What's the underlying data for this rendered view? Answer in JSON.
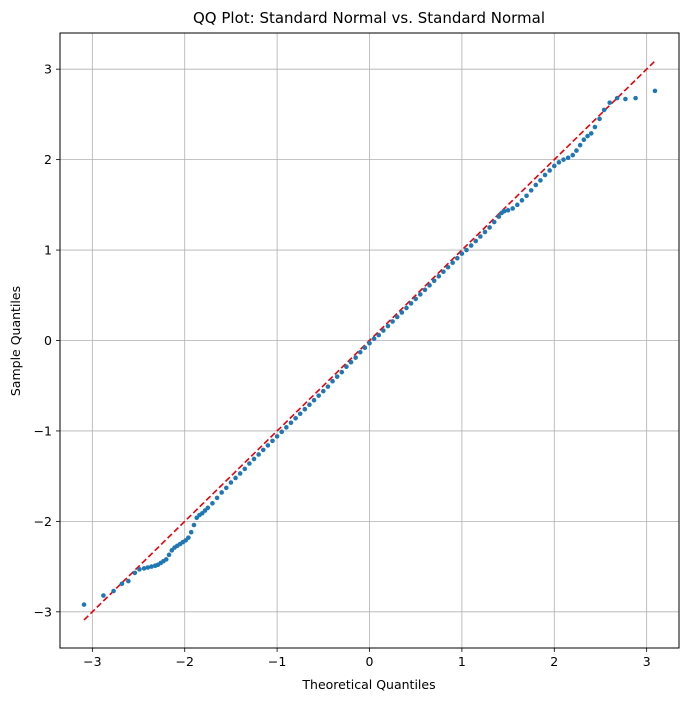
{
  "chart_data": {
    "type": "scatter",
    "title": "QQ Plot: Standard Normal vs. Standard Normal",
    "xlabel": "Theoretical Quantiles",
    "ylabel": "Sample Quantiles",
    "xlim": [
      -3.35,
      3.35
    ],
    "ylim": [
      -3.4,
      3.4
    ],
    "xticks": [
      -3,
      -2,
      -1,
      0,
      1,
      2,
      3
    ],
    "yticks": [
      -3,
      -2,
      -1,
      0,
      1,
      2,
      3
    ],
    "xtick_labels": [
      "−3",
      "−2",
      "−1",
      "0",
      "1",
      "2",
      "3"
    ],
    "ytick_labels": [
      "−3",
      "−2",
      "−1",
      "0",
      "1",
      "2",
      "3"
    ],
    "grid": true,
    "point_color": "#1f77b4",
    "reference_line": {
      "color": "#e8000b",
      "style": "dashed",
      "from": [
        -3.09,
        -3.09
      ],
      "to": [
        3.09,
        3.09
      ]
    },
    "series": [
      {
        "points": [
          [
            -3.09,
            -2.92
          ],
          [
            -2.88,
            -2.82
          ],
          [
            -2.77,
            -2.77
          ],
          [
            -2.68,
            -2.69
          ],
          [
            -2.61,
            -2.66
          ],
          [
            -2.54,
            -2.57
          ],
          [
            -2.49,
            -2.53
          ],
          [
            -2.44,
            -2.52
          ],
          [
            -2.4,
            -2.51
          ],
          [
            -2.36,
            -2.5
          ],
          [
            -2.32,
            -2.49
          ],
          [
            -2.29,
            -2.48
          ],
          [
            -2.26,
            -2.46
          ],
          [
            -2.23,
            -2.44
          ],
          [
            -2.2,
            -2.42
          ],
          [
            -2.17,
            -2.37
          ],
          [
            -2.14,
            -2.32
          ],
          [
            -2.11,
            -2.29
          ],
          [
            -2.08,
            -2.27
          ],
          [
            -2.05,
            -2.25
          ],
          [
            -2.02,
            -2.23
          ],
          [
            -1.99,
            -2.21
          ],
          [
            -1.96,
            -2.18
          ],
          [
            -1.93,
            -2.12
          ],
          [
            -1.9,
            -2.04
          ],
          [
            -1.87,
            -1.96
          ],
          [
            -1.84,
            -1.93
          ],
          [
            -1.81,
            -1.91
          ],
          [
            -1.78,
            -1.88
          ],
          [
            -1.75,
            -1.85
          ],
          [
            -1.7,
            -1.8
          ],
          [
            -1.65,
            -1.74
          ],
          [
            -1.6,
            -1.68
          ],
          [
            -1.55,
            -1.63
          ],
          [
            -1.5,
            -1.57
          ],
          [
            -1.45,
            -1.52
          ],
          [
            -1.4,
            -1.47
          ],
          [
            -1.35,
            -1.42
          ],
          [
            -1.3,
            -1.36
          ],
          [
            -1.25,
            -1.31
          ],
          [
            -1.2,
            -1.26
          ],
          [
            -1.15,
            -1.21
          ],
          [
            -1.1,
            -1.16
          ],
          [
            -1.05,
            -1.11
          ],
          [
            -1.0,
            -1.06
          ],
          [
            -0.95,
            -1.01
          ],
          [
            -0.9,
            -0.96
          ],
          [
            -0.85,
            -0.91
          ],
          [
            -0.8,
            -0.86
          ],
          [
            -0.75,
            -0.81
          ],
          [
            -0.7,
            -0.76
          ],
          [
            -0.65,
            -0.71
          ],
          [
            -0.6,
            -0.66
          ],
          [
            -0.55,
            -0.61
          ],
          [
            -0.5,
            -0.56
          ],
          [
            -0.45,
            -0.51
          ],
          [
            -0.4,
            -0.45
          ],
          [
            -0.35,
            -0.4
          ],
          [
            -0.3,
            -0.35
          ],
          [
            -0.25,
            -0.29
          ],
          [
            -0.2,
            -0.24
          ],
          [
            -0.15,
            -0.19
          ],
          [
            -0.1,
            -0.13
          ],
          [
            -0.05,
            -0.08
          ],
          [
            0.0,
            -0.03
          ],
          [
            0.05,
            0.02
          ],
          [
            0.1,
            0.06
          ],
          [
            0.15,
            0.11
          ],
          [
            0.2,
            0.16
          ],
          [
            0.25,
            0.21
          ],
          [
            0.3,
            0.26
          ],
          [
            0.35,
            0.31
          ],
          [
            0.4,
            0.36
          ],
          [
            0.45,
            0.41
          ],
          [
            0.5,
            0.46
          ],
          [
            0.55,
            0.51
          ],
          [
            0.6,
            0.56
          ],
          [
            0.65,
            0.61
          ],
          [
            0.7,
            0.66
          ],
          [
            0.75,
            0.71
          ],
          [
            0.8,
            0.76
          ],
          [
            0.85,
            0.81
          ],
          [
            0.9,
            0.86
          ],
          [
            0.95,
            0.91
          ],
          [
            1.0,
            0.96
          ],
          [
            1.05,
            1.0
          ],
          [
            1.1,
            1.05
          ],
          [
            1.15,
            1.1
          ],
          [
            1.2,
            1.15
          ],
          [
            1.25,
            1.2
          ],
          [
            1.3,
            1.25
          ],
          [
            1.35,
            1.31
          ],
          [
            1.4,
            1.37
          ],
          [
            1.43,
            1.41
          ],
          [
            1.46,
            1.43
          ],
          [
            1.5,
            1.44
          ],
          [
            1.55,
            1.46
          ],
          [
            1.6,
            1.5
          ],
          [
            1.65,
            1.55
          ],
          [
            1.7,
            1.6
          ],
          [
            1.75,
            1.66
          ],
          [
            1.8,
            1.72
          ],
          [
            1.85,
            1.77
          ],
          [
            1.9,
            1.83
          ],
          [
            1.95,
            1.88
          ],
          [
            2.0,
            1.93
          ],
          [
            2.05,
            1.97
          ],
          [
            2.1,
            2.0
          ],
          [
            2.15,
            2.02
          ],
          [
            2.2,
            2.05
          ],
          [
            2.24,
            2.1
          ],
          [
            2.28,
            2.16
          ],
          [
            2.32,
            2.22
          ],
          [
            2.36,
            2.26
          ],
          [
            2.4,
            2.29
          ],
          [
            2.44,
            2.36
          ],
          [
            2.49,
            2.45
          ],
          [
            2.54,
            2.55
          ],
          [
            2.6,
            2.63
          ],
          [
            2.68,
            2.68
          ],
          [
            2.77,
            2.67
          ],
          [
            2.88,
            2.68
          ],
          [
            3.09,
            2.76
          ]
        ]
      }
    ]
  }
}
